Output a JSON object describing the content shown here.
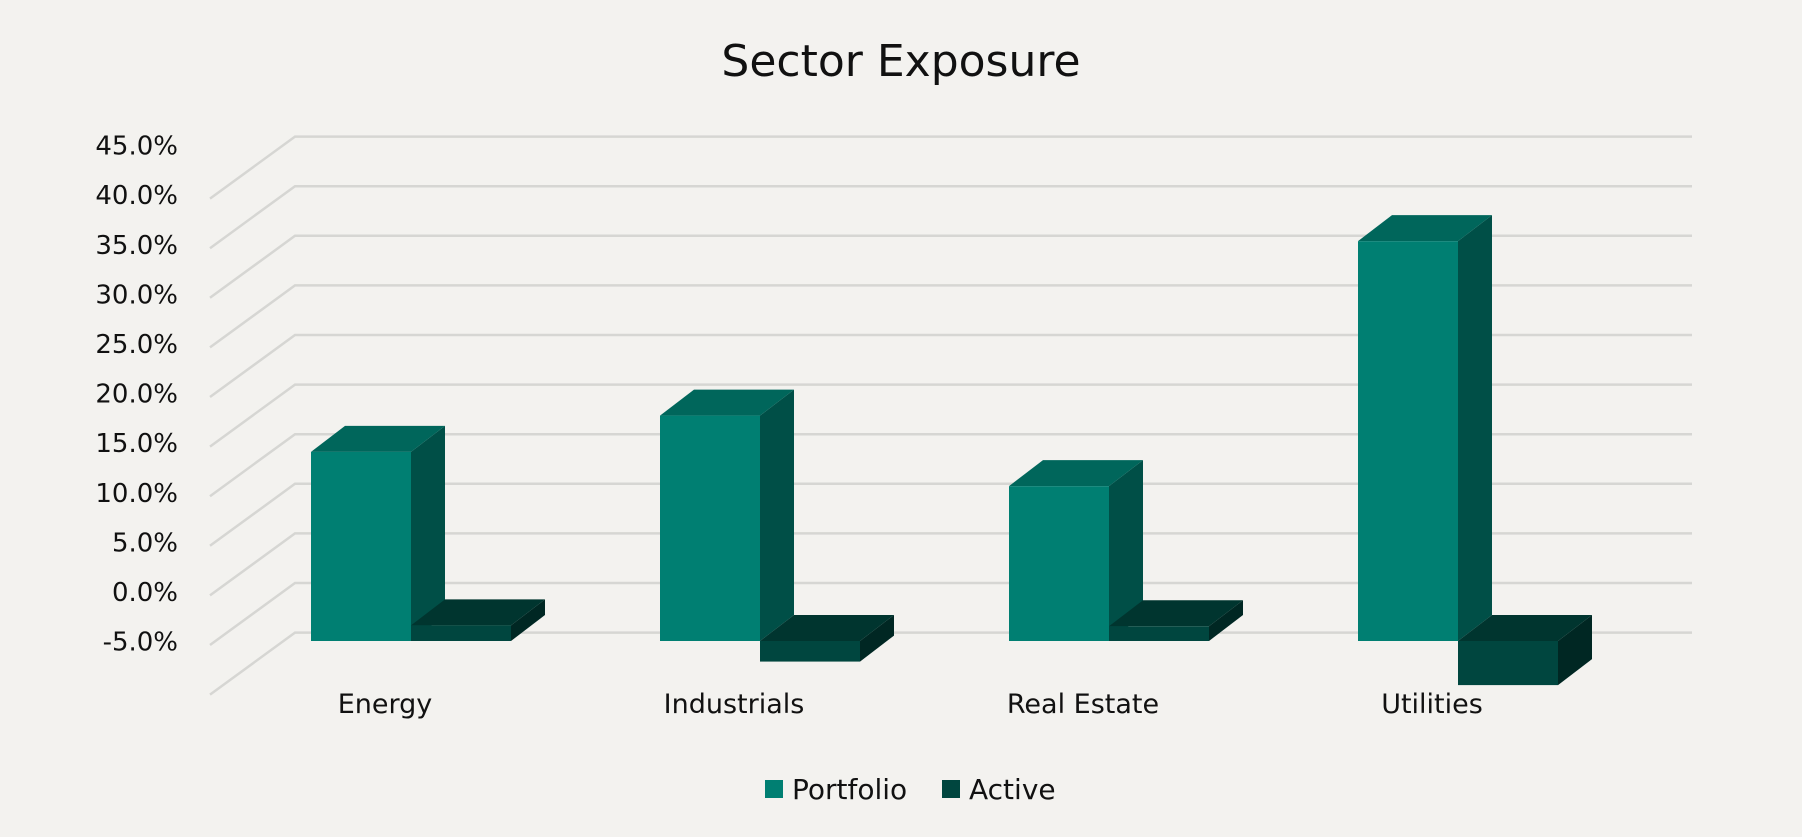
{
  "colors": {
    "background": "#f3f2ef",
    "portfolio": "#007f72",
    "active": "#00463f"
  },
  "chart_data": {
    "type": "bar",
    "title": "Sector Exposure",
    "categories": [
      "Energy",
      "Industrials",
      "Real Estate",
      "Utilities"
    ],
    "series": [
      {
        "name": "Portfolio",
        "values": [
          19.3,
          23.0,
          15.8,
          40.8
        ]
      },
      {
        "name": "Active",
        "values": [
          1.6,
          -2.1,
          1.5,
          -4.5
        ]
      }
    ],
    "ylim": [
      -5,
      45
    ],
    "yticks": [
      "-5.0%",
      "0.0%",
      "5.0%",
      "10.0%",
      "15.0%",
      "20.0%",
      "25.0%",
      "30.0%",
      "35.0%",
      "40.0%",
      "45.0%"
    ],
    "grid": true,
    "legend": "bottom",
    "style": "3d-clustered-column"
  }
}
